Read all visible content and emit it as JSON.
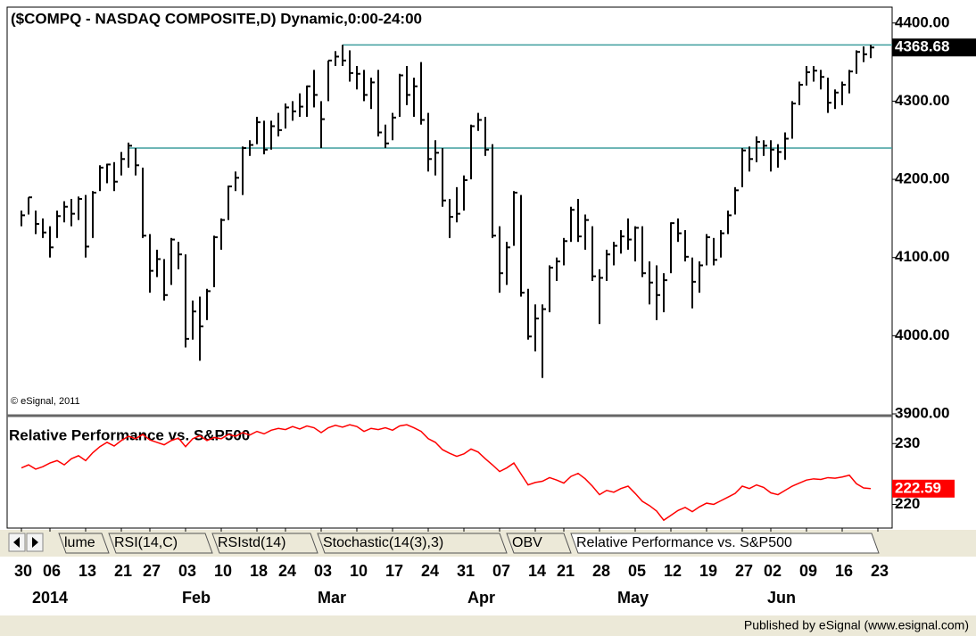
{
  "chart_data": {
    "type": "hlc",
    "title": "($COMPQ - NASDAQ COMPOSITE,D) Dynamic,0:00-24:00",
    "watermark": "© eSignal, 2011",
    "subtitle": "Relative Performance vs. S&P500",
    "footer": "Published by eSignal (www.esignal.com)",
    "tabs": [
      "lume",
      "RSI(14,C)",
      "RSIstd(14)",
      "Stochastic(14(3),3)",
      "OBV",
      "Relative Performance vs. S&P500"
    ],
    "active_tab": 5,
    "categories": [
      "30",
      null,
      null,
      null,
      "06",
      null,
      null,
      null,
      null,
      "13",
      null,
      null,
      null,
      null,
      "21",
      null,
      null,
      null,
      "27",
      null,
      null,
      null,
      null,
      "03",
      null,
      null,
      null,
      null,
      "10",
      null,
      null,
      null,
      null,
      "18",
      null,
      null,
      null,
      "24",
      null,
      null,
      null,
      null,
      "03",
      null,
      null,
      null,
      null,
      "10",
      null,
      null,
      null,
      null,
      "17",
      null,
      null,
      null,
      null,
      "24",
      null,
      null,
      null,
      null,
      "31",
      null,
      null,
      null,
      null,
      "07",
      null,
      null,
      null,
      null,
      "14",
      null,
      null,
      null,
      "21",
      null,
      null,
      null,
      null,
      "28",
      null,
      null,
      null,
      null,
      "05",
      null,
      null,
      null,
      null,
      "12",
      null,
      null,
      null,
      null,
      "19",
      null,
      null,
      null,
      null,
      "27",
      null,
      null,
      null,
      "02",
      null,
      null,
      null,
      null,
      "09",
      null,
      null,
      null,
      null,
      "16",
      null,
      null,
      null,
      null,
      "23"
    ],
    "months": [
      null,
      null,
      "2014",
      null,
      null,
      null,
      null,
      null,
      null,
      null,
      null,
      null,
      null,
      null,
      null,
      null,
      null,
      null,
      null,
      null,
      null,
      null,
      null,
      "Feb",
      null,
      null,
      null,
      null,
      null,
      null,
      null,
      null,
      null,
      null,
      null,
      null,
      null,
      null,
      null,
      null,
      null,
      null,
      "Mar",
      null,
      null,
      null,
      null,
      null,
      null,
      null,
      null,
      null,
      null,
      null,
      null,
      null,
      null,
      null,
      null,
      null,
      null,
      null,
      null,
      "Apr",
      null,
      null,
      null,
      null,
      null,
      null,
      null,
      null,
      null,
      null,
      null,
      null,
      null,
      null,
      null,
      null,
      null,
      null,
      null,
      null,
      "May",
      null,
      null,
      null,
      null,
      null,
      null,
      null,
      null,
      null,
      null,
      null,
      null,
      null,
      null,
      null,
      null,
      null,
      null,
      null,
      null,
      "Jun",
      null,
      null,
      null,
      null,
      null,
      null,
      null,
      null,
      null,
      null,
      null,
      null,
      null,
      null,
      null
    ],
    "high": [
      4160,
      4177,
      4160,
      4150,
      4140,
      4160,
      4172,
      4175,
      4178,
      4180,
      4185,
      4218,
      4220,
      4222,
      4235,
      4247,
      4240,
      4215,
      4130,
      4110,
      4098,
      4125,
      4120,
      4104,
      4045,
      4050,
      4060,
      4128,
      4150,
      4192,
      4210,
      4242,
      4250,
      4280,
      4275,
      4275,
      4285,
      4297,
      4300,
      4310,
      4320,
      4340,
      4300,
      4352,
      4364,
      4372,
      4365,
      4345,
      4340,
      4330,
      4340,
      4270,
      4285,
      4335,
      4345,
      4330,
      4350,
      4285,
      4250,
      4240,
      4175,
      4190,
      4205,
      4270,
      4285,
      4280,
      4245,
      4140,
      4120,
      4185,
      4180,
      4060,
      4040,
      4040,
      4090,
      4100,
      4125,
      4165,
      4175,
      4155,
      4140,
      4085,
      4110,
      4120,
      4135,
      4150,
      4140,
      4140,
      4095,
      4090,
      4080,
      4145,
      4150,
      4135,
      4100,
      4095,
      4130,
      4125,
      4135,
      4160,
      4190,
      4240,
      4242,
      4255,
      4250,
      4250,
      4245,
      4260,
      4300,
      4325,
      4345,
      4345,
      4340,
      4330,
      4315,
      4325,
      4340,
      4365,
      4370,
      4372,
      null
    ],
    "low": [
      4140,
      4155,
      4130,
      4125,
      4100,
      4125,
      4145,
      4140,
      4148,
      4100,
      4125,
      4185,
      4195,
      4185,
      4205,
      4215,
      4205,
      4125,
      4055,
      4075,
      4045,
      4065,
      4085,
      3985,
      3995,
      3968,
      4020,
      4062,
      4110,
      4148,
      4185,
      4180,
      4230,
      4245,
      4232,
      4238,
      4255,
      4265,
      4275,
      4280,
      4280,
      4292,
      4240,
      4300,
      4345,
      4345,
      4325,
      4315,
      4300,
      4290,
      4255,
      4240,
      4250,
      4280,
      4295,
      4280,
      4270,
      4210,
      4205,
      4165,
      4125,
      4145,
      4160,
      4200,
      4262,
      4230,
      4125,
      4055,
      4065,
      4115,
      4050,
      3995,
      3980,
      3946,
      4030,
      4070,
      4090,
      4120,
      4120,
      4110,
      4070,
      4015,
      4070,
      4090,
      4105,
      4110,
      4095,
      4075,
      4040,
      4020,
      4030,
      4080,
      4120,
      4095,
      4035,
      4055,
      4090,
      4090,
      4100,
      4130,
      4155,
      4190,
      4210,
      4222,
      4230,
      4210,
      4215,
      4225,
      4252,
      4295,
      4320,
      4325,
      4315,
      4285,
      4290,
      4295,
      4310,
      4335,
      4350,
      4355,
      null
    ],
    "close": [
      4154,
      4177,
      4143,
      4132,
      4113,
      4153,
      4165,
      4156,
      4175,
      4114,
      4183,
      4215,
      4219,
      4197,
      4226,
      4243,
      4218,
      4128,
      4083,
      4098,
      4052,
      4123,
      4104,
      3996,
      4031,
      4012,
      4057,
      4126,
      4148,
      4191,
      4202,
      4240,
      4244,
      4273,
      4238,
      4268,
      4263,
      4292,
      4287,
      4293,
      4319,
      4308,
      4277,
      4352,
      4357,
      4352,
      4336,
      4335,
      4308,
      4324,
      4260,
      4246,
      4279,
      4333,
      4308,
      4319,
      4276,
      4226,
      4234,
      4173,
      4152,
      4156,
      4199,
      4268,
      4276,
      4238,
      4128,
      4080,
      4113,
      4183,
      4055,
      3999,
      4022,
      4034,
      4087,
      4095,
      4121,
      4161,
      4127,
      4148,
      4076,
      4074,
      4104,
      4115,
      4127,
      4123,
      4138,
      4080,
      4068,
      4052,
      4071,
      4144,
      4131,
      4101,
      4069,
      4090,
      4126,
      4097,
      4131,
      4154,
      4186,
      4237,
      4226,
      4248,
      4243,
      4238,
      4235,
      4252,
      4297,
      4321,
      4337,
      4339,
      4331,
      4298,
      4311,
      4321,
      4338,
      4363,
      4360,
      4368.68,
      null
    ],
    "color": "#000000",
    "levels": [
      4372,
      4240
    ],
    "level_color": "#3f9e9e",
    "ylim": [
      3900,
      4418
    ],
    "yticks": [
      {
        "value": 3900,
        "label": "3900.00"
      },
      {
        "value": 4000,
        "label": "4000.00"
      },
      {
        "value": 4100,
        "label": "4100.00"
      },
      {
        "value": 4200,
        "label": "4200.00"
      },
      {
        "value": 4300,
        "label": "4300.00"
      },
      {
        "value": 4400,
        "label": "4400.00"
      }
    ],
    "rs": {
      "name": "Relative Performance vs. S&P500",
      "color": "#ff0000",
      "values": [
        226.0,
        226.5,
        225.8,
        226.2,
        226.8,
        227.2,
        226.5,
        227.5,
        228.0,
        227.2,
        228.5,
        229.5,
        230.2,
        229.6,
        230.5,
        231.2,
        230.8,
        231.5,
        230.6,
        230.2,
        229.8,
        230.5,
        230.9,
        229.5,
        230.8,
        231.3,
        230.5,
        231.0,
        230.8,
        231.5,
        231.2,
        231.8,
        231.4,
        232.0,
        231.6,
        232.2,
        232.5,
        232.3,
        232.8,
        232.4,
        232.9,
        232.6,
        231.8,
        232.6,
        233.0,
        232.7,
        233.1,
        232.8,
        232.0,
        232.5,
        232.3,
        232.6,
        232.2,
        232.9,
        233.1,
        232.6,
        232.0,
        230.8,
        230.2,
        229.0,
        228.4,
        227.9,
        228.3,
        229.1,
        228.6,
        227.5,
        226.5,
        225.4,
        226.0,
        226.8,
        225.0,
        223.2,
        223.6,
        223.8,
        224.4,
        224.0,
        223.5,
        224.6,
        225.1,
        224.2,
        223.0,
        221.6,
        222.3,
        222.0,
        222.6,
        223.0,
        221.8,
        220.5,
        219.8,
        218.9,
        217.4,
        218.2,
        219.0,
        219.5,
        218.8,
        219.6,
        220.2,
        220.0,
        220.6,
        221.2,
        221.8,
        223.0,
        222.6,
        223.2,
        222.8,
        221.9,
        221.6,
        222.3,
        223.0,
        223.5,
        224.0,
        224.2,
        224.1,
        224.4,
        224.3,
        224.5,
        224.8,
        223.4,
        222.7,
        222.59,
        null
      ],
      "ylim": [
        216.4,
        234
      ],
      "yticks": [
        220,
        230
      ]
    }
  }
}
